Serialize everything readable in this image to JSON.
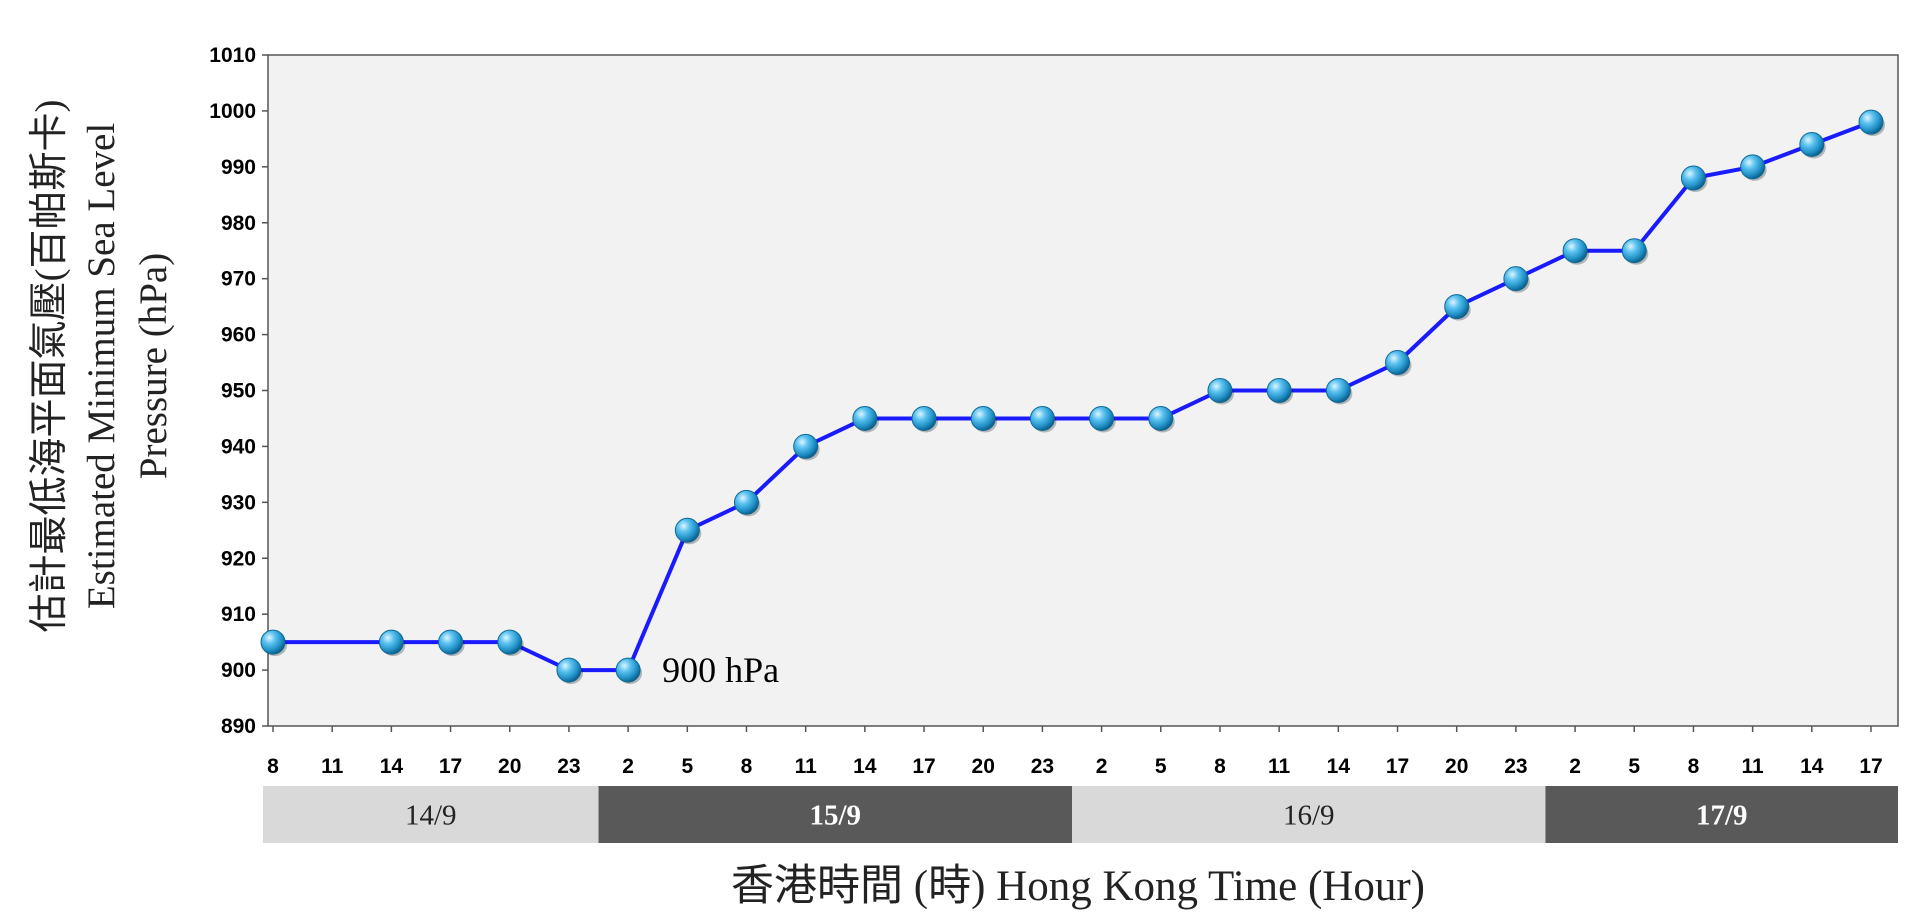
{
  "chart_data": {
    "type": "line",
    "ylabel_zh": "估計最低海平面氣壓(百帕斯卡)",
    "ylabel_en_line1": "Estimated Minimum Sea Level",
    "ylabel_en_line2": "Pressure (hPa)",
    "xlabel": "香港時間  (時) Hong Kong Time (Hour)",
    "ylim": [
      890,
      1010
    ],
    "yticks": [
      890,
      900,
      910,
      920,
      930,
      940,
      950,
      960,
      970,
      980,
      990,
      1000,
      1010
    ],
    "x_tick_labels": [
      "8",
      "11",
      "14",
      "17",
      "20",
      "23",
      "2",
      "5",
      "8",
      "11",
      "14",
      "17",
      "20",
      "23",
      "2",
      "5",
      "8",
      "11",
      "14",
      "17",
      "20",
      "23",
      "2",
      "5",
      "8",
      "11",
      "14",
      "17"
    ],
    "dates": [
      {
        "label": "14/9",
        "first_tick": 0,
        "last_tick": 5,
        "shade": "light"
      },
      {
        "label": "15/9",
        "first_tick": 6,
        "last_tick": 13,
        "shade": "dark"
      },
      {
        "label": "16/9",
        "first_tick": 14,
        "last_tick": 21,
        "shade": "light"
      },
      {
        "label": "17/9",
        "first_tick": 22,
        "last_tick": 27,
        "shade": "dark"
      }
    ],
    "series": [
      {
        "points": [
          {
            "x": "14/9 08",
            "tick": 0,
            "y": 905
          },
          {
            "x": "14/9 14",
            "tick": 2,
            "y": 905
          },
          {
            "x": "14/9 17",
            "tick": 3,
            "y": 905
          },
          {
            "x": "14/9 20",
            "tick": 4,
            "y": 905
          },
          {
            "x": "14/9 23",
            "tick": 5,
            "y": 900
          },
          {
            "x": "15/9 02",
            "tick": 6,
            "y": 900
          },
          {
            "x": "15/9 05",
            "tick": 7,
            "y": 925
          },
          {
            "x": "15/9 08",
            "tick": 8,
            "y": 930
          },
          {
            "x": "15/9 11",
            "tick": 9,
            "y": 940
          },
          {
            "x": "15/9 14",
            "tick": 10,
            "y": 945
          },
          {
            "x": "15/9 17",
            "tick": 11,
            "y": 945
          },
          {
            "x": "15/9 20",
            "tick": 12,
            "y": 945
          },
          {
            "x": "15/9 23",
            "tick": 13,
            "y": 945
          },
          {
            "x": "16/9 02",
            "tick": 14,
            "y": 945
          },
          {
            "x": "16/9 05",
            "tick": 15,
            "y": 945
          },
          {
            "x": "16/9 08",
            "tick": 16,
            "y": 950
          },
          {
            "x": "16/9 11",
            "tick": 17,
            "y": 950
          },
          {
            "x": "16/9 14",
            "tick": 18,
            "y": 950
          },
          {
            "x": "16/9 17",
            "tick": 19,
            "y": 955
          },
          {
            "x": "16/9 20",
            "tick": 20,
            "y": 965
          },
          {
            "x": "16/9 23",
            "tick": 21,
            "y": 970
          },
          {
            "x": "17/9 02",
            "tick": 22,
            "y": 975
          },
          {
            "x": "17/9 05",
            "tick": 23,
            "y": 975
          },
          {
            "x": "17/9 08",
            "tick": 24,
            "y": 988
          },
          {
            "x": "17/9 11",
            "tick": 25,
            "y": 990
          },
          {
            "x": "17/9 14",
            "tick": 26,
            "y": 994
          },
          {
            "x": "17/9 17",
            "tick": 27,
            "y": 998
          }
        ]
      }
    ],
    "annotations": [
      {
        "text": "900 hPa",
        "tick": 6,
        "y": 900
      }
    ],
    "grid": false,
    "colors": {
      "plot_bg": "#f2f2f2",
      "line": "#1a1aff",
      "marker": "#29a3d9",
      "date_light": "#d9d9d9",
      "date_dark": "#595959"
    }
  }
}
